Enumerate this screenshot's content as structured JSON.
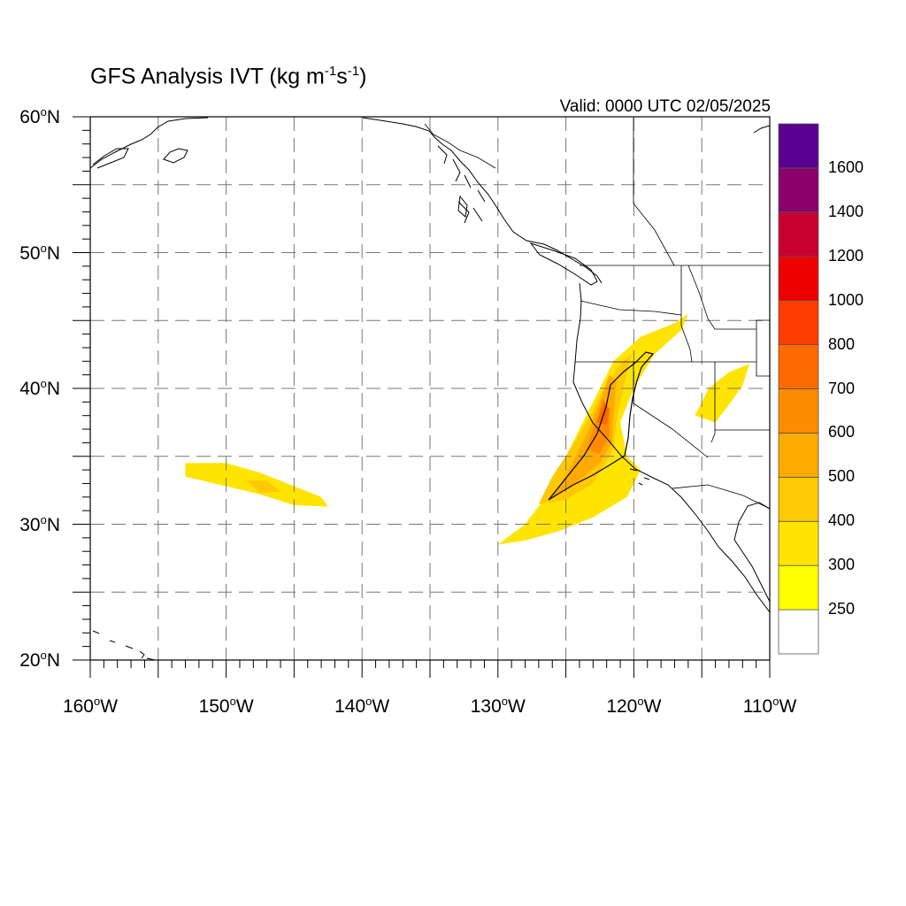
{
  "title": {
    "main": "GFS Analysis IVT (kg m",
    "sup1": "-1",
    "mid": "s",
    "sup2": "-1",
    "end": ")"
  },
  "valid": "Valid: 0000 UTC 02/05/2025",
  "map": {
    "lon_range": [
      -160,
      -110
    ],
    "lat_range": [
      20,
      60
    ],
    "grid_lines": "dashed",
    "lat_labels": [
      {
        "value": 60,
        "num": "60",
        "hem": "N"
      },
      {
        "value": 50,
        "num": "50",
        "hem": "N"
      },
      {
        "value": 40,
        "num": "40",
        "hem": "N"
      },
      {
        "value": 30,
        "num": "30",
        "hem": "N"
      },
      {
        "value": 20,
        "num": "20",
        "hem": "N"
      }
    ],
    "lon_labels": [
      {
        "value": -160,
        "num": "160",
        "hem": "W"
      },
      {
        "value": -150,
        "num": "150",
        "hem": "W"
      },
      {
        "value": -140,
        "num": "140",
        "hem": "W"
      },
      {
        "value": -130,
        "num": "130",
        "hem": "W"
      },
      {
        "value": -120,
        "num": "120",
        "hem": "W"
      },
      {
        "value": -110,
        "num": "110",
        "hem": "W"
      }
    ]
  },
  "colorbar": {
    "levels": [
      "250",
      "300",
      "400",
      "500",
      "600",
      "700",
      "800",
      "1000",
      "1200",
      "1400",
      "1600"
    ],
    "colors": [
      "#ffffff",
      "#ffff00",
      "#ffe400",
      "#ffc800",
      "#ffaa00",
      "#ff8c00",
      "#ff6a00",
      "#ff3c00",
      "#ee0000",
      "#c80030",
      "#8b006b",
      "#5a0091"
    ]
  },
  "ivt_features": [
    {
      "name": "main-atmospheric-river",
      "class": 2,
      "points": [
        [
          -130,
          28.5
        ],
        [
          -128,
          30
        ],
        [
          -126.5,
          32
        ],
        [
          -125.5,
          34
        ],
        [
          -124.5,
          36
        ],
        [
          -123.5,
          38
        ],
        [
          -122.5,
          40
        ],
        [
          -121.5,
          42
        ],
        [
          -119.5,
          43.8
        ],
        [
          -117,
          44.8
        ],
        [
          -116,
          45.5
        ],
        [
          -116.5,
          44.3
        ],
        [
          -118.5,
          42.5
        ],
        [
          -120,
          40
        ],
        [
          -121,
          37.5
        ],
        [
          -120.5,
          35
        ],
        [
          -119.5,
          34
        ],
        [
          -120.5,
          32
        ],
        [
          -123,
          30.5
        ],
        [
          -125.5,
          29.5
        ],
        [
          -128,
          28.8
        ]
      ]
    },
    {
      "name": "main-ar-mid",
      "class": 3,
      "points": [
        [
          -127,
          31.5
        ],
        [
          -126,
          33.5
        ],
        [
          -124.5,
          35.8
        ],
        [
          -123.2,
          38
        ],
        [
          -122.2,
          40
        ],
        [
          -121,
          41.8
        ],
        [
          -120.2,
          42.5
        ],
        [
          -120.8,
          40
        ],
        [
          -121.3,
          37.5
        ],
        [
          -121.5,
          35.5
        ],
        [
          -123,
          33
        ],
        [
          -125,
          31.8
        ]
      ]
    },
    {
      "name": "main-ar-inner",
      "class": 4,
      "points": [
        [
          -126,
          32
        ],
        [
          -124.5,
          34.5
        ],
        [
          -123.3,
          37
        ],
        [
          -122.5,
          39
        ],
        [
          -121.8,
          41
        ],
        [
          -121.3,
          40.5
        ],
        [
          -121.5,
          38
        ],
        [
          -121.6,
          36
        ],
        [
          -122.5,
          34.5
        ],
        [
          -124.5,
          32.8
        ]
      ]
    },
    {
      "name": "main-ar-core",
      "class": 5,
      "points": [
        [
          -123.5,
          35.5
        ],
        [
          -122.8,
          37.5
        ],
        [
          -122.3,
          39.3
        ],
        [
          -121.8,
          38.5
        ],
        [
          -121.8,
          36.5
        ],
        [
          -122.5,
          35.2
        ]
      ]
    },
    {
      "name": "main-ar-peak",
      "class": 6,
      "points": [
        [
          -122.7,
          37.5
        ],
        [
          -122.2,
          39
        ],
        [
          -121.8,
          38.5
        ],
        [
          -122,
          37.3
        ]
      ]
    },
    {
      "name": "subtropical-plume",
      "class": 2,
      "points": [
        [
          -153,
          34.5
        ],
        [
          -150,
          34.5
        ],
        [
          -147.5,
          33.8
        ],
        [
          -145,
          32.8
        ],
        [
          -143,
          32
        ],
        [
          -142.5,
          31.3
        ],
        [
          -145,
          31.4
        ],
        [
          -147.5,
          32.2
        ],
        [
          -150,
          32.8
        ],
        [
          -153,
          33.5
        ]
      ]
    },
    {
      "name": "subtropical-plume-core",
      "class": 3,
      "points": [
        [
          -148.5,
          33.2
        ],
        [
          -147,
          33.2
        ],
        [
          -146,
          32.4
        ],
        [
          -147.5,
          32.3
        ]
      ]
    },
    {
      "name": "nevada-patch",
      "class": 2,
      "points": [
        [
          -114.5,
          40
        ],
        [
          -113,
          41.2
        ],
        [
          -111.5,
          41.8
        ],
        [
          -112,
          40.2
        ],
        [
          -113,
          38.8
        ],
        [
          -114,
          37.5
        ],
        [
          -115.5,
          38
        ]
      ]
    }
  ]
}
